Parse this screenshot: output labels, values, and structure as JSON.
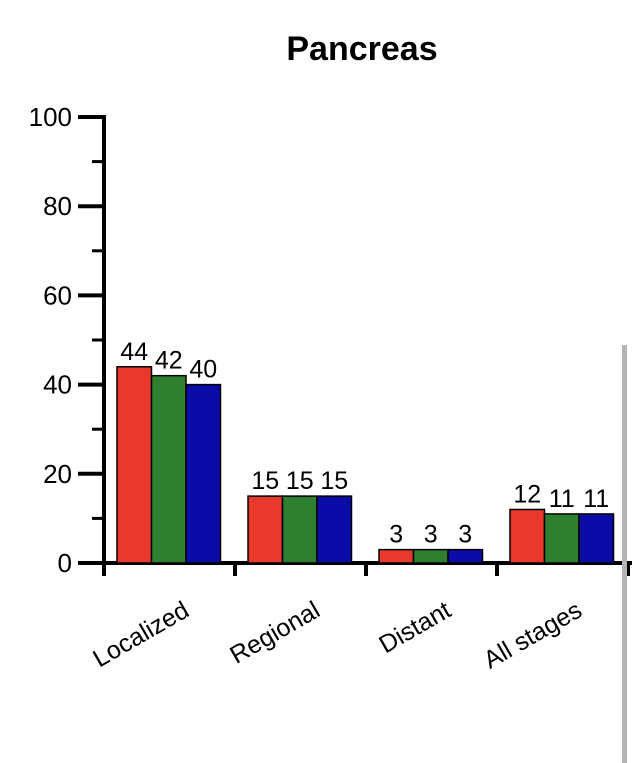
{
  "chart_data": {
    "type": "bar",
    "title": "Pancreas",
    "xlabel": "",
    "ylabel": "",
    "ylim": [
      0,
      100
    ],
    "yticks": [
      0,
      20,
      40,
      60,
      80,
      100
    ],
    "categories": [
      "Localized",
      "Regional",
      "Distant",
      "All stages"
    ],
    "series": [
      {
        "values": [
          44,
          15,
          3,
          12
        ],
        "color": "#e8392c"
      },
      {
        "values": [
          42,
          15,
          3,
          11
        ],
        "color": "#2e8030"
      },
      {
        "values": [
          40,
          15,
          3,
          11
        ],
        "color": "#0b0ba8"
      }
    ],
    "grid": false,
    "legend": "none"
  }
}
